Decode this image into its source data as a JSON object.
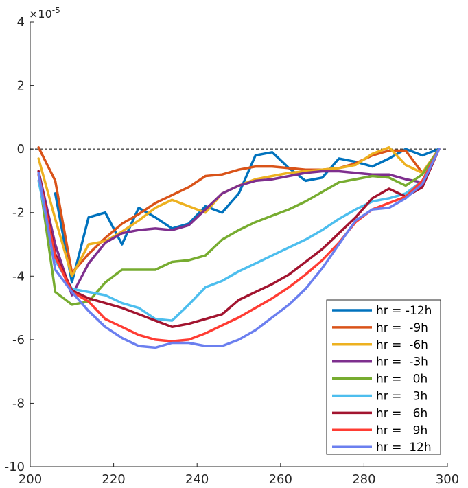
{
  "chart_data": {
    "type": "line",
    "title": "",
    "xlabel": "",
    "ylabel": "",
    "y_exponent_label": "×10",
    "y_exponent_power": "-5",
    "xlim": [
      200,
      300
    ],
    "ylim": [
      -10,
      4
    ],
    "xticks": [
      200,
      220,
      240,
      260,
      280,
      300
    ],
    "yticks": [
      -10,
      -8,
      -6,
      -4,
      -2,
      0,
      2,
      4
    ],
    "zero_line": true,
    "grid": false,
    "legend_position": "bottom-right",
    "series": [
      {
        "name": "hr = -12h",
        "color": "#0072BD",
        "x": [
          206,
          210,
          214,
          218,
          222,
          226,
          230,
          234,
          238,
          242,
          246,
          250,
          254,
          258,
          262,
          266,
          270,
          274,
          278,
          282,
          286,
          290,
          294,
          298
        ],
        "y": [
          -1.4,
          -4.2,
          -2.15,
          -2.0,
          -3.0,
          -1.85,
          -2.15,
          -2.5,
          -2.35,
          -1.8,
          -2.0,
          -1.4,
          -0.2,
          -0.1,
          -0.6,
          -1.0,
          -0.9,
          -0.3,
          -0.4,
          -0.55,
          -0.3,
          0.0,
          -0.2,
          0.0
        ]
      },
      {
        "name": "hr =  -9h",
        "color": "#D95319",
        "x": [
          202,
          206,
          210,
          214,
          218,
          222,
          226,
          230,
          234,
          238,
          242,
          246,
          250,
          254,
          258,
          262,
          266,
          270,
          274,
          278,
          282,
          286,
          290,
          294,
          298
        ],
        "y": [
          0.05,
          -1.0,
          -3.9,
          -3.3,
          -2.8,
          -2.35,
          -2.05,
          -1.7,
          -1.45,
          -1.2,
          -0.85,
          -0.8,
          -0.65,
          -0.55,
          -0.55,
          -0.6,
          -0.65,
          -0.65,
          -0.6,
          -0.45,
          -0.2,
          -0.05,
          -0.05,
          -0.75,
          0.0
        ]
      },
      {
        "name": "hr =  -6h",
        "color": "#EDB120",
        "x": [
          202,
          206,
          210,
          214,
          218,
          222,
          226,
          230,
          234,
          238,
          242,
          246,
          250,
          254,
          258,
          262,
          266,
          270,
          274,
          278,
          282,
          286,
          290,
          294,
          298
        ],
        "y": [
          -0.3,
          -2.2,
          -4.0,
          -3.0,
          -2.9,
          -2.6,
          -2.25,
          -1.85,
          -1.6,
          -1.8,
          -2.0,
          -1.4,
          -1.15,
          -0.95,
          -0.85,
          -0.75,
          -0.7,
          -0.65,
          -0.6,
          -0.5,
          -0.15,
          0.05,
          -0.5,
          -0.75,
          0.0
        ]
      },
      {
        "name": "hr =  -3h",
        "color": "#7E2F8E",
        "x": [
          202,
          206,
          210,
          214,
          218,
          222,
          226,
          230,
          234,
          238,
          242,
          246,
          250,
          254,
          258,
          262,
          266,
          270,
          274,
          278,
          282,
          286,
          290,
          294,
          298
        ],
        "y": [
          -0.7,
          -3.0,
          -4.6,
          -3.6,
          -2.95,
          -2.65,
          -2.55,
          -2.5,
          -2.55,
          -2.4,
          -1.9,
          -1.4,
          -1.15,
          -1.0,
          -0.95,
          -0.85,
          -0.75,
          -0.7,
          -0.7,
          -0.75,
          -0.8,
          -0.8,
          -0.95,
          -1.05,
          0.0
        ]
      },
      {
        "name": "hr =   0h",
        "color": "#77AC30",
        "x": [
          202,
          206,
          210,
          214,
          218,
          222,
          226,
          230,
          234,
          238,
          242,
          246,
          250,
          254,
          258,
          262,
          266,
          270,
          274,
          278,
          282,
          286,
          290,
          294,
          298
        ],
        "y": [
          -0.8,
          -4.5,
          -4.9,
          -4.8,
          -4.2,
          -3.8,
          -3.8,
          -3.8,
          -3.55,
          -3.5,
          -3.35,
          -2.85,
          -2.55,
          -2.3,
          -2.1,
          -1.9,
          -1.65,
          -1.35,
          -1.05,
          -0.95,
          -0.85,
          -0.9,
          -1.15,
          -0.8,
          0.0
        ]
      },
      {
        "name": "hr =   3h",
        "color": "#4DBEEE",
        "x": [
          202,
          206,
          210,
          214,
          218,
          222,
          226,
          230,
          234,
          238,
          242,
          246,
          250,
          254,
          258,
          262,
          266,
          270,
          274,
          278,
          282,
          286,
          290,
          294,
          298
        ],
        "y": [
          -1.0,
          -3.5,
          -4.4,
          -4.5,
          -4.6,
          -4.85,
          -5.0,
          -5.35,
          -5.4,
          -4.9,
          -4.35,
          -4.15,
          -3.85,
          -3.6,
          -3.35,
          -3.1,
          -2.85,
          -2.55,
          -2.2,
          -1.9,
          -1.65,
          -1.55,
          -1.4,
          -1.0,
          0.0
        ]
      },
      {
        "name": "hr =   6h",
        "color": "#A2142F",
        "x": [
          202,
          206,
          210,
          214,
          218,
          222,
          226,
          230,
          234,
          238,
          242,
          246,
          250,
          254,
          258,
          262,
          266,
          270,
          274,
          278,
          282,
          286,
          290,
          294,
          298
        ],
        "y": [
          -0.7,
          -3.3,
          -4.45,
          -4.7,
          -4.85,
          -5.0,
          -5.2,
          -5.4,
          -5.6,
          -5.5,
          -5.35,
          -5.2,
          -4.75,
          -4.5,
          -4.25,
          -3.95,
          -3.55,
          -3.15,
          -2.65,
          -2.15,
          -1.55,
          -1.25,
          -1.5,
          -1.2,
          0.0
        ]
      },
      {
        "name": "hr =   9h",
        "color": "#FF3C33",
        "x": [
          202,
          206,
          210,
          214,
          218,
          222,
          226,
          230,
          234,
          238,
          242,
          246,
          250,
          254,
          258,
          262,
          266,
          270,
          274,
          278,
          282,
          286,
          290,
          294,
          298
        ],
        "y": [
          -0.8,
          -3.4,
          -4.5,
          -4.8,
          -5.35,
          -5.6,
          -5.85,
          -6.0,
          -6.05,
          -6.0,
          -5.8,
          -5.55,
          -5.3,
          -5.0,
          -4.7,
          -4.35,
          -3.95,
          -3.5,
          -2.95,
          -2.3,
          -1.9,
          -1.7,
          -1.5,
          -1.0,
          0.0
        ]
      },
      {
        "name": "hr =  12h",
        "color": "#6B7FEF",
        "x": [
          202,
          206,
          210,
          214,
          218,
          222,
          226,
          230,
          234,
          238,
          242,
          246,
          250,
          254,
          258,
          262,
          266,
          270,
          274,
          278,
          282,
          286,
          290,
          294,
          298
        ],
        "y": [
          -0.75,
          -3.8,
          -4.5,
          -5.1,
          -5.6,
          -5.95,
          -6.2,
          -6.25,
          -6.1,
          -6.1,
          -6.2,
          -6.2,
          -6.0,
          -5.7,
          -5.3,
          -4.9,
          -4.4,
          -3.75,
          -3.0,
          -2.25,
          -1.9,
          -1.85,
          -1.55,
          -1.1,
          0.0
        ]
      }
    ]
  }
}
